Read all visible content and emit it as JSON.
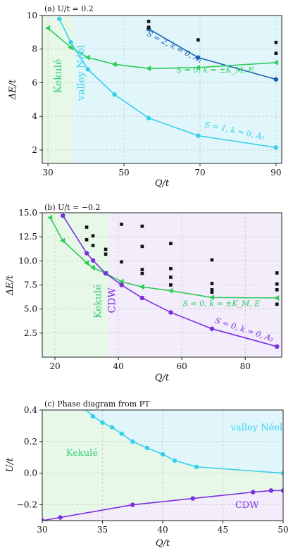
{
  "panels": [
    {
      "id": "a",
      "title": "(a) U/t = 0.2",
      "xlabel": "Q/t",
      "ylabel": "ΔE/t",
      "xlim": [
        28.5,
        91.5
      ],
      "ylim": [
        1.2,
        10.0
      ],
      "xticks": [
        30,
        50,
        70,
        90
      ],
      "yticks": [
        2,
        4,
        6,
        8,
        10
      ],
      "regions": [
        {
          "name": "Kekulé",
          "from": 28.5,
          "to": 36.8,
          "color": "#e8f8e8"
        },
        {
          "name": "valley Néel",
          "from": 36.8,
          "to": 91.5,
          "color": "#e0f6fb"
        }
      ],
      "region_labels": [
        {
          "text": "Kekulé",
          "x": 33.5,
          "y": 6.4,
          "color": "#2ecc71",
          "rotate": -90
        },
        {
          "text": "valley Néel",
          "x": 39.5,
          "y": 6.6,
          "color": "#3fd3e8",
          "rotate": -90
        }
      ],
      "series": [
        {
          "label": "S=2, k=0, A1",
          "color": "#1a5fb4",
          "marker": "circle",
          "x": [
            56.5,
            69.5,
            90
          ],
          "y": [
            9.2,
            7.5,
            6.2
          ]
        },
        {
          "label": "S=0, k=±KM, E",
          "color": "#2ecc5a",
          "marker": "triangle",
          "x": [
            30,
            36,
            40.5,
            47.5,
            56.5,
            69.5,
            90
          ],
          "y": [
            9.25,
            8.1,
            7.5,
            7.1,
            6.85,
            6.9,
            7.2
          ]
        },
        {
          "label": "S=1, k=0, A2",
          "color": "#36d0ea",
          "marker": "circle",
          "x": [
            33,
            36,
            40.5,
            47.5,
            56.5,
            69.5,
            90
          ],
          "y": [
            9.8,
            8.4,
            6.8,
            5.3,
            3.9,
            2.85,
            2.15
          ]
        }
      ],
      "extra_points": {
        "x": [
          56.5,
          56.5,
          69.5,
          90,
          90
        ],
        "y": [
          9.65,
          9.3,
          8.55,
          8.4,
          7.75
        ]
      },
      "series_labels": [
        {
          "text": "S = 2, k = 0, A₁",
          "x": 63,
          "y": 8.0,
          "color": "#1a5fb4",
          "rotate": 27
        },
        {
          "text": "S = 0, k = ±K_M, E",
          "x": 74,
          "y": 6.6,
          "color": "#2ecc5a",
          "rotate": 0
        },
        {
          "text": "S = 1, k = 0, A₂",
          "x": 79,
          "y": 3.0,
          "color": "#36d0ea",
          "rotate": 12
        }
      ]
    },
    {
      "id": "b",
      "title": "(b) U/t = −0.2",
      "xlabel": "Q/t",
      "ylabel": "ΔE/t",
      "xlim": [
        16,
        91.5
      ],
      "ylim": [
        0.0,
        15.0
      ],
      "xticks": [
        20,
        40,
        60,
        80
      ],
      "yticks": [
        2.5,
        5.0,
        7.5,
        10.0,
        12.5,
        15.0
      ],
      "ytick_labels": [
        "2.5",
        "5.0",
        "7.5",
        "10.0",
        "12.5",
        "15.0"
      ],
      "regions": [
        {
          "name": "Kekulé",
          "from": 16,
          "to": 37,
          "color": "#e8f8e8"
        },
        {
          "name": "CDW",
          "from": 37,
          "to": 91.5,
          "color": "#f2ecfb"
        }
      ],
      "region_labels": [
        {
          "text": "Kekulé",
          "x": 34.5,
          "y": 5.8,
          "color": "#2ecc71",
          "rotate": -90
        },
        {
          "text": "CDW",
          "x": 39,
          "y": 5.9,
          "color": "#7b2ee0",
          "rotate": -90
        }
      ],
      "series": [
        {
          "label": "S=0, k=±KM, E",
          "color": "#2ecc5a",
          "marker": "triangle",
          "x": [
            18.5,
            22.5,
            30,
            32,
            36,
            41,
            47.5,
            56.5,
            69.5,
            90
          ],
          "y": [
            14.5,
            12.1,
            9.8,
            9.3,
            8.7,
            7.85,
            7.3,
            6.9,
            6.2,
            6.15
          ]
        },
        {
          "label": "S=0, k=0, A2",
          "color": "#7b2ee0",
          "marker": "circle",
          "x": [
            22.5,
            30,
            32,
            36,
            41,
            47.5,
            56.5,
            69.5,
            90
          ],
          "y": [
            14.7,
            10.8,
            10.05,
            8.7,
            7.5,
            6.15,
            4.65,
            2.95,
            1.1
          ]
        }
      ],
      "extra_points": {
        "x": [
          30,
          30,
          32,
          32,
          36,
          36,
          41,
          41,
          47.5,
          47.5,
          47.5,
          47.5,
          56.5,
          56.5,
          56.5,
          56.5,
          69.5,
          69.5,
          69.5,
          69.5,
          90,
          90,
          90,
          90
        ],
        "y": [
          13.5,
          12.2,
          12.6,
          11.6,
          11.2,
          10.7,
          13.8,
          9.9,
          13.6,
          11.5,
          9.1,
          8.7,
          11.8,
          9.2,
          8.3,
          7.5,
          10.1,
          7.65,
          7.0,
          6.75,
          8.75,
          7.6,
          7.0,
          5.5
        ]
      },
      "series_labels": [
        {
          "text": "S = 0, k = ±K_M, E",
          "x": 72.5,
          "y": 5.3,
          "color": "#2ecc5a",
          "rotate": 0
        },
        {
          "text": "S = 0, k = 0, A₂",
          "x": 79.5,
          "y": 2.6,
          "color": "#7b2ee0",
          "rotate": 18
        }
      ]
    },
    {
      "id": "c",
      "title": "(c) Phase diagram from PT",
      "xlabel": "Q/t",
      "ylabel": "U/t",
      "xlim": [
        30,
        50
      ],
      "ylim": [
        -0.3,
        0.4
      ],
      "xticks": [
        30,
        35,
        40,
        45,
        50
      ],
      "yticks": [
        -0.2,
        0.0,
        0.2,
        0.4
      ],
      "ytick_labels": [
        "−0.2",
        "0.0",
        "0.2",
        "0.4"
      ],
      "series": [
        {
          "label": "valley Néel boundary",
          "color": "#36d0ea",
          "marker": "circle",
          "x": [
            33.5,
            34.2,
            35,
            35.8,
            36.6,
            37.5,
            38.7,
            40,
            41,
            42.8,
            50
          ],
          "y": [
            0.41,
            0.36,
            0.32,
            0.29,
            0.25,
            0.2,
            0.16,
            0.12,
            0.08,
            0.04,
            0.0
          ]
        },
        {
          "label": "CDW boundary",
          "color": "#7b2ee0",
          "marker": "circle",
          "x": [
            30,
            31.5,
            37.5,
            42.5,
            47.5,
            49,
            50
          ],
          "y": [
            -0.3,
            -0.28,
            -0.2,
            -0.16,
            -0.12,
            -0.11,
            -0.11
          ]
        }
      ],
      "region_labels": [
        {
          "text": "Kekulé",
          "x": 33.3,
          "y": 0.11,
          "color": "#2ecc71"
        },
        {
          "text": "valley Néel",
          "x": 47.8,
          "y": 0.27,
          "color": "#36d0ea"
        },
        {
          "text": "CDW",
          "x": 47.0,
          "y": -0.22,
          "color": "#7b2ee0"
        }
      ],
      "colors": {
        "kekule": "#e8f8e8",
        "neel": "#e0f6fb",
        "cdw": "#f2ecfb"
      }
    }
  ]
}
